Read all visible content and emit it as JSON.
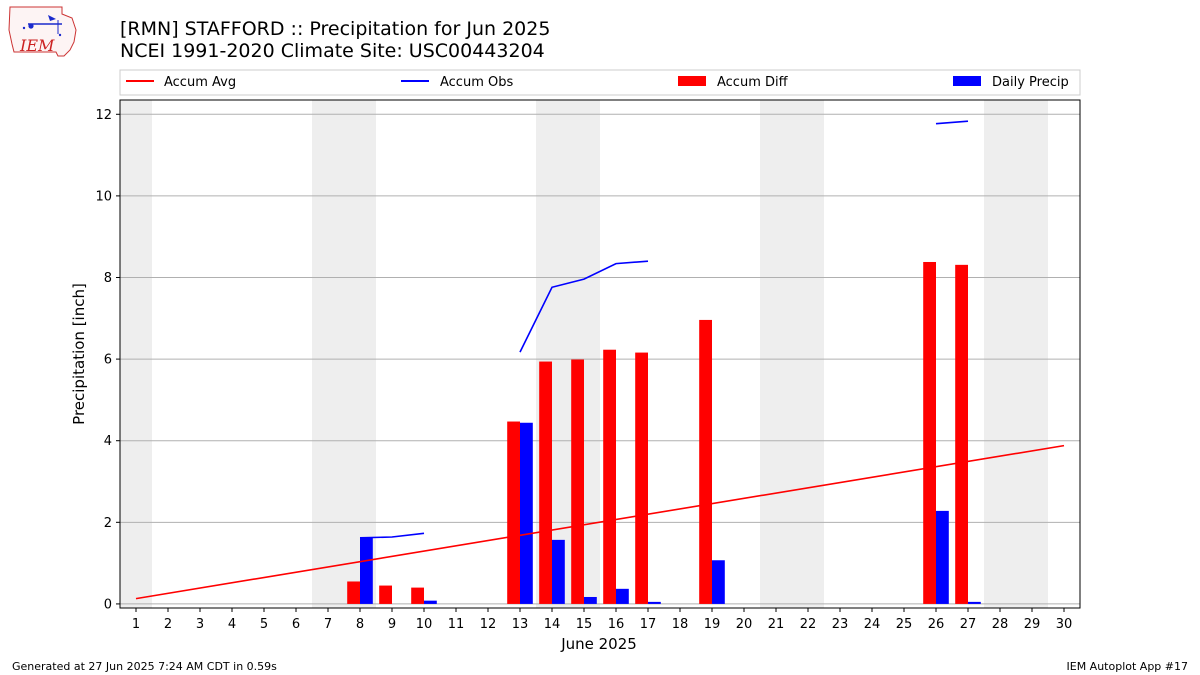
{
  "header": {
    "title_line1": "[RMN] STAFFORD :: Precipitation for Jun 2025",
    "title_line2": "NCEI 1991-2020 Climate Site: USC00443204",
    "logo_text": "IEM"
  },
  "footer": {
    "left": "Generated at 27 Jun 2025 7:24 AM CDT in 0.59s",
    "right": "IEM Autoplot App #17"
  },
  "colors": {
    "avg": "#ff0000",
    "obs": "#0000ff",
    "diff": "#ff0000",
    "daily": "#0000ff",
    "weekend_shade": "#eeeeee",
    "grid": "#b0b0b0"
  },
  "chart_data": {
    "type": "bar",
    "title": "[RMN] STAFFORD :: Precipitation for Jun 2025",
    "subtitle": "NCEI 1991-2020 Climate Site: USC00443204",
    "xlabel": "June 2025",
    "ylabel": "Precipitation [inch]",
    "ylim": [
      -0.1,
      12.35
    ],
    "xlim": [
      0.5,
      30.5
    ],
    "y_ticks": [
      0,
      2,
      4,
      6,
      8,
      10,
      12
    ],
    "x_ticks": [
      "1",
      "2",
      "3",
      "4",
      "5",
      "6",
      "7",
      "8",
      "9",
      "10",
      "11",
      "12",
      "13",
      "14",
      "15",
      "16",
      "17",
      "18",
      "19",
      "20",
      "21",
      "22",
      "23",
      "24",
      "25",
      "26",
      "27",
      "28",
      "29",
      "30"
    ],
    "grid": "horizontal",
    "legend_placement": "top",
    "shaded_days": [
      1,
      7,
      8,
      14,
      15,
      21,
      22,
      28,
      29
    ],
    "series": [
      {
        "name": "Accum Avg",
        "kind": "line",
        "x": [
          1,
          30
        ],
        "values": [
          0.13,
          3.88
        ]
      },
      {
        "name": "Accum Obs",
        "kind": "line",
        "segments": [
          {
            "x": [
              8,
              9,
              10
            ],
            "values": [
              1.62,
              1.64,
              1.73
            ]
          },
          {
            "x": [
              13,
              14,
              15,
              16,
              17
            ],
            "values": [
              6.17,
              7.76,
              7.96,
              8.34,
              8.4
            ]
          },
          {
            "x": [
              26,
              27
            ],
            "values": [
              11.77,
              11.83
            ]
          }
        ]
      },
      {
        "name": "Accum Diff",
        "kind": "bar",
        "x": [
          8,
          9,
          10,
          13,
          14,
          15,
          16,
          17,
          19,
          26,
          27
        ],
        "values": [
          0.55,
          0.45,
          0.4,
          4.47,
          5.94,
          5.99,
          6.23,
          6.16,
          6.96,
          8.38,
          8.31
        ]
      },
      {
        "name": "Daily Precip",
        "kind": "bar",
        "x": [
          8,
          10,
          13,
          14,
          15,
          16,
          17,
          19,
          26,
          27
        ],
        "values": [
          1.62,
          0.08,
          4.44,
          1.57,
          0.17,
          0.37,
          0.05,
          1.07,
          2.28,
          0.05
        ]
      }
    ]
  }
}
